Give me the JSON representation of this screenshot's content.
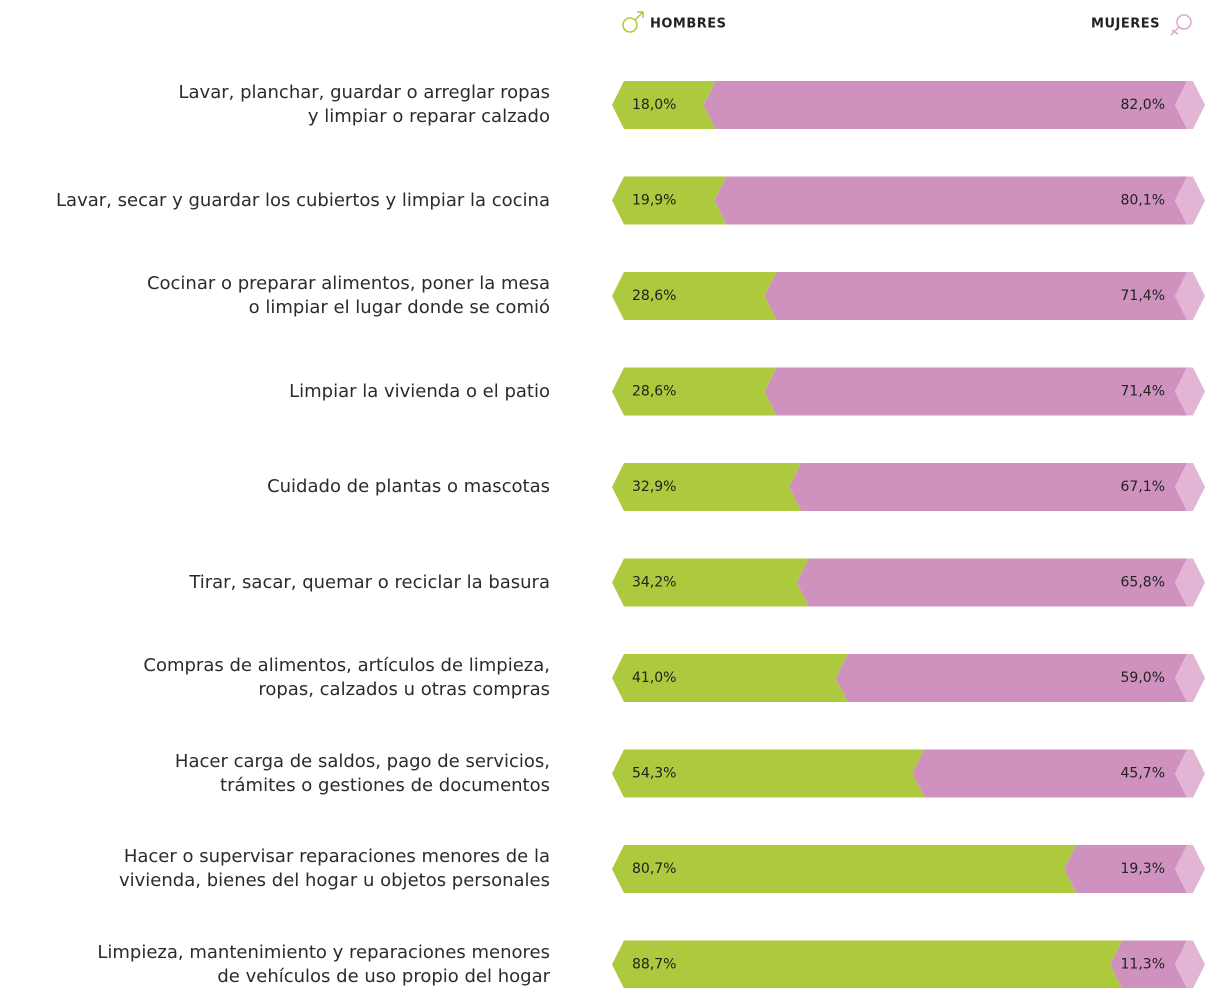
{
  "chart_data": {
    "type": "stacked_bar_100",
    "categories": [
      "Lavar, planchar, guardar o arreglar ropas\ny limpiar o reparar calzado",
      "Lavar, secar y guardar los cubiertos y limpiar la cocina",
      "Cocinar o preparar alimentos, poner la mesa\no limpiar el lugar donde se comió",
      "Limpiar la vivienda o el patio",
      "Cuidado de plantas o mascotas",
      "Tirar, sacar, quemar o reciclar la basura",
      "Compras de alimentos, artículos de limpieza,\nropas, calzados u otras compras",
      "Hacer carga de saldos, pago de servicios,\ntrámites o gestiones de documentos",
      "Hacer o supervisar reparaciones menores de la\nvivienda, bienes del hogar u objetos personales",
      "Limpieza, mantenimiento y reparaciones menores\nde vehículos de uso propio del hogar"
    ],
    "series": [
      {
        "name": "HOMBRES",
        "color": "#adc93e",
        "values": [
          18.0,
          19.9,
          28.6,
          28.6,
          32.9,
          34.2,
          41.0,
          54.3,
          80.7,
          88.7
        ],
        "value_labels": [
          "18,0%",
          "19,9%",
          "28,6%",
          "28,6%",
          "32,9%",
          "34,2%",
          "41,0%",
          "54,3%",
          "80,7%",
          "88,7%"
        ]
      },
      {
        "name": "MUJERES",
        "color": "#cf92be",
        "values": [
          82.0,
          80.1,
          71.4,
          71.4,
          67.1,
          65.8,
          59.0,
          45.7,
          19.3,
          11.3
        ],
        "value_labels": [
          "82,0%",
          "80,1%",
          "71,4%",
          "71,4%",
          "67,1%",
          "65,8%",
          "59,0%",
          "45,7%",
          "19,3%",
          "11,3%"
        ]
      }
    ],
    "xlim": [
      0,
      100
    ]
  }
}
